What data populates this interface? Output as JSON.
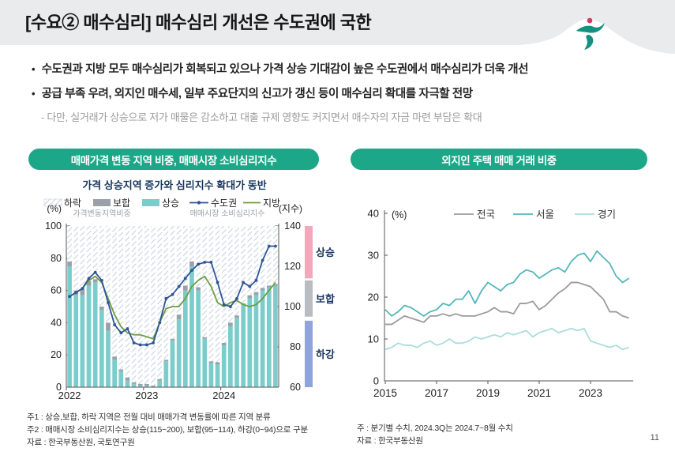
{
  "header": {
    "title": "[수요② 매수심리] 매수심리 개선은 수도권에 국한",
    "logo": "korea-real-estate-board-logo"
  },
  "bullets": {
    "marker": "•",
    "b1": "수도권과 지방 모두 매수심리가 회복되고 있으나 가격 상승 기대감이 높은 수도권에서 매수심리가 더욱 개선",
    "b2": "공급 부족 우려, 외지인 매수세, 일부 주요단지의 신고가 갱신 등이 매수심리 확대를 자극할 전망",
    "sub": "- 다만, 실거래가 상승으로 저가 매물은 감소하고 대출 규제 영향도 커지면서 매수자의 자금 마련 부담은 확대"
  },
  "sections": {
    "left_badge": "매매가격 변동 지역 비중, 매매시장 소비심리지수",
    "right_badge": "외지인 주택 매매 거래 비중"
  },
  "colors": {
    "badge_green": "#1ca888",
    "header_gray": "#e9ebec",
    "logo_teal": "#17907f",
    "logo_red": "#d63a6a",
    "navy_label": "#17365d"
  },
  "footnotes_left": {
    "line1": "주1 : 상승,보합, 하락 지역은 전월 대비 매매가격 변동률에 따른 지역 분류",
    "line2": "주2 : 매매시장 소비심리지수는 상승(115~200), 보합(95~114), 하강(0~94)으로 구분",
    "line3": "자료 : 한국부동산원, 국토연구원"
  },
  "footnotes_right": {
    "line1": "주 : 분기별 수치, 2024.3Q는 2024.7~8월 수치",
    "line2": "자료 : 한국부동산원"
  },
  "page_number": "11",
  "chart_data": [
    {
      "id": "price-change-region-share-and-sentiment",
      "type": "bar+line",
      "title": "가격 상승지역 증가와 심리지수 확대가 동반",
      "title_color": "#17365d",
      "x_unit": "month",
      "x_start": "2022-01",
      "x_end": "2024-09",
      "x_tick_labels": [
        "2022",
        "2023",
        "2024"
      ],
      "y_left": {
        "label": "(%)",
        "ticks": [
          0,
          20,
          40,
          60,
          80,
          100
        ],
        "range": [
          0,
          100
        ]
      },
      "y_right": {
        "label": "(지수)",
        "ticks": [
          60,
          80,
          100,
          120,
          140
        ],
        "range": [
          60,
          140
        ]
      },
      "legend": [
        {
          "label": "하락",
          "type": "hatch",
          "color": "#c7d1e0"
        },
        {
          "label": "보합",
          "type": "bar",
          "color": "#9aa0a8"
        },
        {
          "label": "상승",
          "type": "bar",
          "color": "#7bccca"
        },
        {
          "label": "수도권",
          "type": "line-marker",
          "color": "#2e5596"
        },
        {
          "label": "지방",
          "type": "line",
          "color": "#6f9c42"
        }
      ],
      "legend_groups": [
        "가격변동지역비중",
        "매매시장 소비심리지수"
      ],
      "series": {
        "rise_pct": [
          75,
          57,
          57,
          63,
          65,
          48,
          35,
          17,
          10,
          4,
          2,
          1,
          1,
          0.5,
          4,
          16,
          29,
          42,
          60,
          75,
          60,
          30,
          15,
          14,
          26,
          38,
          43,
          51,
          55,
          57,
          60,
          62,
          63
        ],
        "flat_pct": [
          3,
          3,
          4,
          3,
          2,
          2,
          5,
          2,
          1,
          2,
          1,
          1,
          1,
          0.5,
          1,
          1,
          1,
          3,
          3,
          3,
          2,
          1,
          1,
          1.5,
          1.5,
          2,
          1.5,
          1,
          2,
          2,
          1.5,
          1,
          1
        ],
        "metro_index": [
          105,
          107,
          109,
          114,
          117,
          113,
          102,
          91,
          87,
          89,
          82,
          81,
          81,
          82,
          92,
          104,
          106,
          110,
          114,
          118,
          121,
          122,
          122,
          112,
          101,
          100,
          104,
          112,
          110,
          113,
          123,
          130,
          130
        ],
        "regions_index": [
          105,
          107,
          109,
          113,
          115,
          112,
          104,
          96,
          90,
          87,
          86,
          86,
          85,
          84,
          92,
          99,
          100,
          100,
          104,
          110,
          113,
          115,
          110,
          102,
          100,
          102,
          103,
          101,
          100,
          101,
          104,
          108,
          112
        ]
      },
      "right_bands": [
        {
          "label": "상승",
          "from": 114,
          "to": 140,
          "color": "#f4a7bb"
        },
        {
          "label": "보합",
          "from": 95,
          "to": 113,
          "color": "#b9bdc1"
        },
        {
          "label": "하강",
          "from": 60,
          "to": 93,
          "color": "#8fa3dc"
        }
      ]
    },
    {
      "id": "nonlocal-home-purchase-share",
      "type": "line",
      "x_unit": "quarter",
      "x_start": "2015Q1",
      "x_end": "2024Q3",
      "x_tick_labels": [
        "2015",
        "2017",
        "2019",
        "2021",
        "2023"
      ],
      "y": {
        "label": "(%)",
        "ticks": [
          0,
          10,
          20,
          30,
          40
        ],
        "range": [
          0,
          40
        ]
      },
      "legend_position": "top-inside",
      "series": [
        {
          "name": "전국",
          "color": "#9b9b9b",
          "values": [
            13.5,
            13.5,
            14.5,
            15.5,
            15,
            14.5,
            14,
            15.5,
            15.5,
            16,
            15.5,
            16,
            15.5,
            15.5,
            15.5,
            16,
            16.5,
            17.5,
            16.5,
            16.5,
            16,
            18.5,
            18.5,
            19,
            17,
            18,
            19.5,
            21,
            22,
            23.5,
            23.5,
            23,
            22.5,
            21,
            19.5,
            16.5,
            16.5,
            15.5,
            15
          ]
        },
        {
          "name": "서울",
          "color": "#53b7ba",
          "values": [
            17,
            15.5,
            16.5,
            18,
            17.5,
            16.5,
            15.5,
            16.5,
            17,
            18.5,
            18,
            19.5,
            19.5,
            21.5,
            18.5,
            21.5,
            23.5,
            22.5,
            21.5,
            23,
            23.5,
            25.5,
            26.5,
            26,
            24.5,
            25.5,
            26.5,
            27,
            26,
            28.5,
            30,
            30.5,
            28.5,
            31,
            29.5,
            28,
            25,
            23.5,
            24.5
          ]
        },
        {
          "name": "경기",
          "color": "#abdcde",
          "values": [
            7.5,
            8,
            9,
            8.5,
            8.5,
            8,
            9,
            9.5,
            8.5,
            9,
            10,
            9,
            9,
            9.5,
            10.5,
            10,
            10.5,
            11,
            10.5,
            11.5,
            11,
            11.5,
            12,
            10.5,
            11.5,
            12,
            12.5,
            11.5,
            12,
            12.5,
            12,
            12.5,
            9.5,
            9,
            8.5,
            8,
            8.5,
            7.5,
            8
          ]
        }
      ]
    }
  ]
}
